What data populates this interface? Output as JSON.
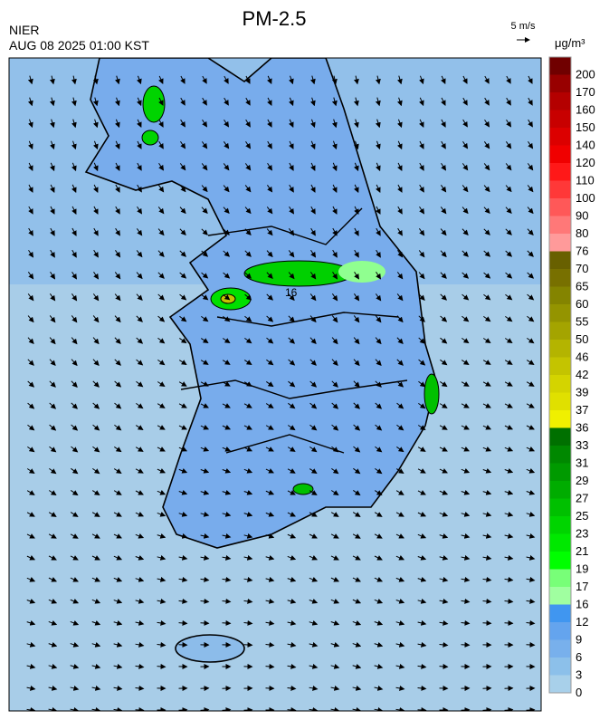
{
  "header": {
    "title": "PM-2.5",
    "source": "NIER",
    "timestamp": "AUG 08 2025 01:00 KST",
    "wind_scale": "5 m/s",
    "unit": "μg/m³"
  },
  "map": {
    "contour_label": "16"
  },
  "colorbar": {
    "ticks": [
      0,
      3,
      6,
      9,
      12,
      16,
      17,
      19,
      21,
      23,
      25,
      27,
      29,
      31,
      33,
      36,
      37,
      39,
      42,
      46,
      50,
      55,
      60,
      65,
      70,
      76,
      80,
      90,
      100,
      110,
      120,
      140,
      150,
      160,
      170,
      200
    ],
    "colors": [
      "#a8d0ea",
      "#8cc0ea",
      "#78b0ec",
      "#64a4ee",
      "#4096f0",
      "#a0ffa0",
      "#78ff78",
      "#00ff00",
      "#00e800",
      "#00d400",
      "#00c000",
      "#00ac00",
      "#009a00",
      "#008800",
      "#007000",
      "#f0f000",
      "#e0e000",
      "#d4d400",
      "#c4c400",
      "#b4b400",
      "#a4a400",
      "#949400",
      "#848400",
      "#787000",
      "#686000",
      "#ff9a9a",
      "#ff7878",
      "#ff5858",
      "#ff3838",
      "#ff1818",
      "#f00000",
      "#dc0000",
      "#c80000",
      "#b40000",
      "#980000",
      "#700000"
    ]
  }
}
